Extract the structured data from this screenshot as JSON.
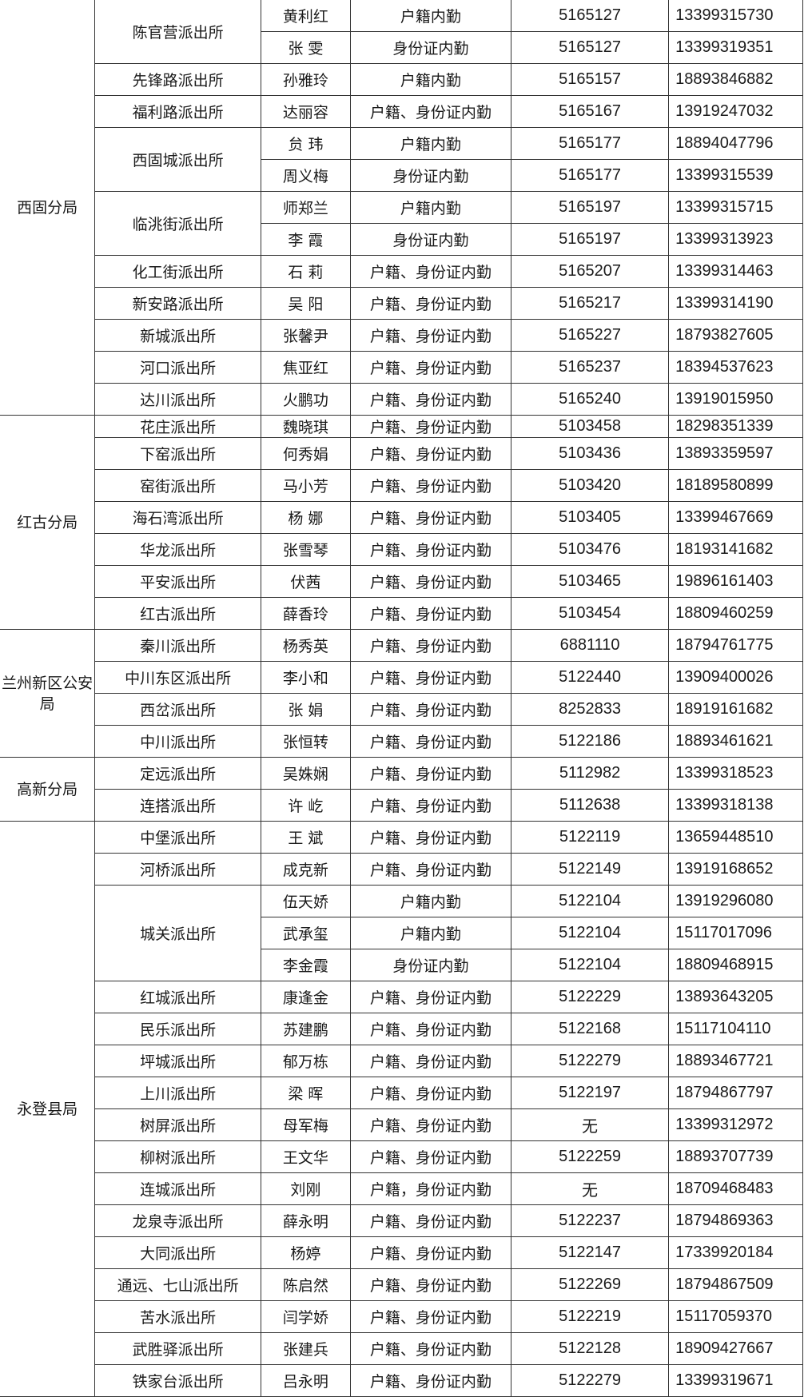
{
  "bureaus": [
    {
      "name": "西固分局",
      "stations": [
        {
          "name": "陈官营派出所",
          "staff": [
            {
              "name": "黄利红",
              "duty": "户籍内勤",
              "office": "5165127",
              "mobile": "13399315730"
            },
            {
              "name": "张 雯",
              "duty": "身份证内勤",
              "office": "5165127",
              "mobile": "13399319351"
            }
          ]
        },
        {
          "name": "先锋路派出所",
          "staff": [
            {
              "name": "孙雅玲",
              "duty": "户籍内勤",
              "office": "5165157",
              "mobile": "18893846882"
            }
          ]
        },
        {
          "name": "福利路派出所",
          "staff": [
            {
              "name": "达丽容",
              "duty": "户籍、身份证内勤",
              "office": "5165167",
              "mobile": "13919247032"
            }
          ]
        },
        {
          "name": "西固城派出所",
          "staff": [
            {
              "name": "贠 玮",
              "duty": "户籍内勤",
              "office": "5165177",
              "mobile": "18894047796"
            },
            {
              "name": "周义梅",
              "duty": "身份证内勤",
              "office": "5165177",
              "mobile": "13399315539"
            }
          ]
        },
        {
          "name": "临洮街派出所",
          "staff": [
            {
              "name": "师郑兰",
              "duty": "户籍内勤",
              "office": "5165197",
              "mobile": "13399315715"
            },
            {
              "name": "李 霞",
              "duty": "身份证内勤",
              "office": "5165197",
              "mobile": "13399313923"
            }
          ]
        },
        {
          "name": "化工街派出所",
          "staff": [
            {
              "name": "石 莉",
              "duty": "户籍、身份证内勤",
              "office": "5165207",
              "mobile": "13399314463"
            }
          ]
        },
        {
          "name": "新安路派出所",
          "staff": [
            {
              "name": "吴 阳",
              "duty": "户籍、身份证内勤",
              "office": "5165217",
              "mobile": "13399314190"
            }
          ]
        },
        {
          "name": "新城派出所",
          "staff": [
            {
              "name": "张馨尹",
              "duty": "户籍、身份证内勤",
              "office": "5165227",
              "mobile": "18793827605"
            }
          ]
        },
        {
          "name": "河口派出所",
          "staff": [
            {
              "name": "焦亚红",
              "duty": "户籍、身份证内勤",
              "office": "5165237",
              "mobile": "18394537623"
            }
          ]
        },
        {
          "name": "达川派出所",
          "staff": [
            {
              "name": "火鹏功",
              "duty": "户籍、身份证内勤",
              "office": "5165240",
              "mobile": "13919015950"
            }
          ]
        }
      ]
    },
    {
      "name": "红古分局",
      "stations": [
        {
          "name": "花庄派出所",
          "staff": [
            {
              "name": "魏晓琪",
              "duty": "户籍、身份证内勤",
              "office": "5103458",
              "mobile": "18298351339"
            }
          ]
        },
        {
          "name": "下窑派出所",
          "staff": [
            {
              "name": "何秀娟",
              "duty": "户籍、身份证内勤",
              "office": "5103436",
              "mobile": "13893359597"
            }
          ]
        },
        {
          "name": "窑街派出所",
          "staff": [
            {
              "name": "马小芳",
              "duty": "户籍、身份证内勤",
              "office": "5103420",
              "mobile": "18189580899"
            }
          ]
        },
        {
          "name": "海石湾派出所",
          "staff": [
            {
              "name": "杨 娜",
              "duty": "户籍、身份证内勤",
              "office": "5103405",
              "mobile": "13399467669"
            }
          ]
        },
        {
          "name": "华龙派出所",
          "staff": [
            {
              "name": "张雪琴",
              "duty": "户籍、身份证内勤",
              "office": "5103476",
              "mobile": "18193141682"
            }
          ]
        },
        {
          "name": "平安派出所",
          "staff": [
            {
              "name": "伏茜",
              "duty": "户籍、身份证内勤",
              "office": "5103465",
              "mobile": "19896161403"
            }
          ]
        },
        {
          "name": "红古派出所",
          "staff": [
            {
              "name": "薛香玲",
              "duty": "户籍、身份证内勤",
              "office": "5103454",
              "mobile": "18809460259"
            }
          ]
        }
      ]
    },
    {
      "name": "兰州新区公安局",
      "stations": [
        {
          "name": "秦川派出所",
          "staff": [
            {
              "name": "杨秀英",
              "duty": "户籍、身份证内勤",
              "office": "6881110",
              "mobile": "18794761775"
            }
          ]
        },
        {
          "name": "中川东区派出所",
          "staff": [
            {
              "name": "李小和",
              "duty": "户籍、身份证内勤",
              "office": "5122440",
              "mobile": "13909400026"
            }
          ]
        },
        {
          "name": "西岔派出所",
          "staff": [
            {
              "name": "张 娟",
              "duty": "户籍、身份证内勤",
              "office": "8252833",
              "mobile": "18919161682"
            }
          ]
        },
        {
          "name": "中川派出所",
          "staff": [
            {
              "name": "张恒转",
              "duty": "户籍、身份证内勤",
              "office": "5122186",
              "mobile": "18893461621"
            }
          ]
        }
      ]
    },
    {
      "name": "高新分局",
      "stations": [
        {
          "name": "定远派出所",
          "staff": [
            {
              "name": "吴姝娴",
              "duty": "户籍、身份证内勤",
              "office": "5112982",
              "mobile": "13399318523"
            }
          ]
        },
        {
          "name": "连搭派出所",
          "staff": [
            {
              "name": "许 屹",
              "duty": "户籍、身份证内勤",
              "office": "5112638",
              "mobile": "13399318138"
            }
          ]
        }
      ]
    },
    {
      "name": "永登县局",
      "stations": [
        {
          "name": "中堡派出所",
          "staff": [
            {
              "name": "王 斌",
              "duty": "户籍、身份证内勤",
              "office": "5122119",
              "mobile": "13659448510"
            }
          ]
        },
        {
          "name": "河桥派出所",
          "staff": [
            {
              "name": "成克新",
              "duty": "户籍、身份证内勤",
              "office": "5122149",
              "mobile": "13919168652"
            }
          ]
        },
        {
          "name": "城关派出所",
          "staff": [
            {
              "name": "伍天娇",
              "duty": "户籍内勤",
              "office": "5122104",
              "mobile": "13919296080"
            },
            {
              "name": "武承玺",
              "duty": "户籍内勤",
              "office": "5122104",
              "mobile": "15117017096"
            },
            {
              "name": "李金霞",
              "duty": "身份证内勤",
              "office": "5122104",
              "mobile": "18809468915"
            }
          ]
        },
        {
          "name": "红城派出所",
          "staff": [
            {
              "name": "康逢金",
              "duty": "户籍、身份证内勤",
              "office": "5122229",
              "mobile": "13893643205"
            }
          ]
        },
        {
          "name": "民乐派出所",
          "staff": [
            {
              "name": "苏建鹏",
              "duty": "户籍、身份证内勤",
              "office": "5122168",
              "mobile": "15117104110"
            }
          ]
        },
        {
          "name": "坪城派出所",
          "staff": [
            {
              "name": "郁万栋",
              "duty": "户籍、身份证内勤",
              "office": "5122279",
              "mobile": "18893467721"
            }
          ]
        },
        {
          "name": "上川派出所",
          "staff": [
            {
              "name": "梁 晖",
              "duty": "户籍、身份证内勤",
              "office": "5122197",
              "mobile": "18794867797"
            }
          ]
        },
        {
          "name": "树屏派出所",
          "staff": [
            {
              "name": "母军梅",
              "duty": "户籍、身份证内勤",
              "office": "无",
              "mobile": "13399312972"
            }
          ]
        },
        {
          "name": "柳树派出所",
          "staff": [
            {
              "name": "王文华",
              "duty": "户籍、身份证内勤",
              "office": "5122259",
              "mobile": "18893707739"
            }
          ]
        },
        {
          "name": "连城派出所",
          "staff": [
            {
              "name": "刘刚",
              "duty": "户籍，身份证内勤",
              "office": "无",
              "mobile": "18709468483"
            }
          ]
        },
        {
          "name": "龙泉寺派出所",
          "staff": [
            {
              "name": "薛永明",
              "duty": "户籍、身份证内勤",
              "office": "5122237",
              "mobile": "18794869363"
            }
          ]
        },
        {
          "name": "大同派出所",
          "staff": [
            {
              "name": "杨婷",
              "duty": "户籍、身份证内勤",
              "office": "5122147",
              "mobile": "17339920184"
            }
          ]
        },
        {
          "name": "通远、七山派出所",
          "staff": [
            {
              "name": "陈启然",
              "duty": "户籍、身份证内勤",
              "office": "5122269",
              "mobile": "18794867509"
            }
          ]
        },
        {
          "name": "苦水派出所",
          "staff": [
            {
              "name": "闫学娇",
              "duty": "户籍、身份证内勤",
              "office": "5122219",
              "mobile": "15117059370"
            }
          ]
        },
        {
          "name": "武胜驿派出所",
          "staff": [
            {
              "name": "张建兵",
              "duty": "户籍、身份证内勤",
              "office": "5122128",
              "mobile": "18909427667"
            }
          ]
        },
        {
          "name": "铁家台派出所",
          "staff": [
            {
              "name": "吕永明",
              "duty": "户籍、身份证内勤",
              "office": "5122279",
              "mobile": "13399319671"
            }
          ]
        }
      ]
    }
  ]
}
